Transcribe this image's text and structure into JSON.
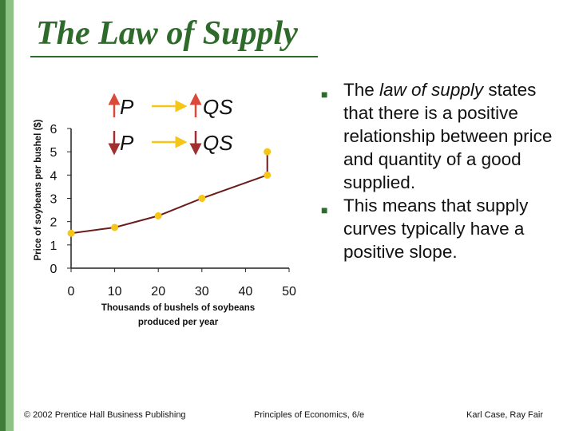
{
  "slide": {
    "title": "The Law of Supply",
    "bullets": [
      {
        "text_before": "The ",
        "emphasis": "law of supply",
        "text_after": " states that there is a positive relationship between price and quantity of a good supplied."
      },
      {
        "text_before": "This means that supply curves typically have a positive slope.",
        "emphasis": "",
        "text_after": ""
      }
    ],
    "footer": {
      "left": "© 2002 Prentice Hall Business Publishing",
      "center": "Principles of Economics, 6/e",
      "right": "Karl Case, Ray Fair"
    }
  },
  "chart_data": {
    "type": "line",
    "x": [
      0,
      10,
      20,
      30,
      45,
      45
    ],
    "y": [
      1.5,
      1.75,
      2.25,
      3.0,
      4.0,
      5.0
    ],
    "xlabel": "Thousands of bushels of soybeans produced per year",
    "ylabel": "Price of soybeans per bushel ($)",
    "xticks": [
      0,
      10,
      20,
      30,
      40,
      50
    ],
    "yticks": [
      0,
      1,
      2,
      3,
      4,
      5,
      6
    ],
    "xlim": [
      0,
      50
    ],
    "ylim": [
      0,
      6
    ],
    "annotations": [
      {
        "left": "P",
        "left_direction": "up",
        "right": "QS",
        "right_direction": "up"
      },
      {
        "left": "P",
        "left_direction": "down",
        "right": "QS",
        "right_direction": "down"
      }
    ],
    "line_color": "#6a1b1b",
    "marker_color": "#f5c518",
    "arrow_colors": {
      "up": "#d94a3a",
      "down": "#a03030",
      "horizontal": "#f5c518"
    },
    "grid": false,
    "legend": "none"
  }
}
